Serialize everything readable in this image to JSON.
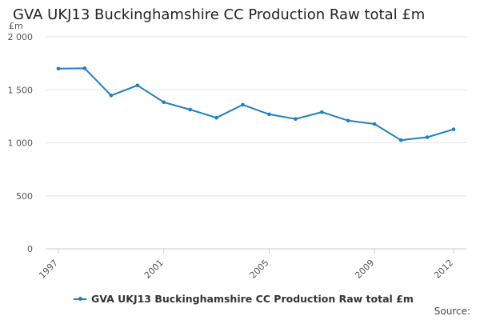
{
  "header": {
    "title": "GVA UKJ13 Buckinghamshire CC Production Raw total £m"
  },
  "footer": {
    "source": "Source:"
  },
  "colors": {
    "series": "#1f7fbf",
    "grid": "#e6e6e6",
    "axis": "#cccccc"
  },
  "chart_data": {
    "type": "line",
    "title": "GVA UKJ13 Buckinghamshire CC Production Raw total £m",
    "ylabel": "£m",
    "xlabel": "",
    "ylim": [
      0,
      2000
    ],
    "yticks": [
      0,
      500,
      1000,
      1500,
      2000
    ],
    "ytick_labels": [
      "0",
      "500",
      "1 000",
      "1 500",
      "2 000"
    ],
    "xlim": [
      1997,
      2012
    ],
    "xtick_labels": [
      "1997",
      "2001",
      "2005",
      "2009",
      "2012"
    ],
    "grid": true,
    "legend": "bottom",
    "series": [
      {
        "name": "GVA UKJ13 Buckinghamshire CC Production Raw total £m",
        "x": [
          1997,
          1998,
          1999,
          2000,
          2001,
          2002,
          2003,
          2004,
          2005,
          2006,
          2007,
          2008,
          2009,
          2010,
          2011,
          2012
        ],
        "values": [
          1700,
          1703,
          1447,
          1542,
          1383,
          1313,
          1236,
          1359,
          1269,
          1225,
          1290,
          1209,
          1177,
          1025,
          1053,
          1127
        ]
      }
    ]
  }
}
